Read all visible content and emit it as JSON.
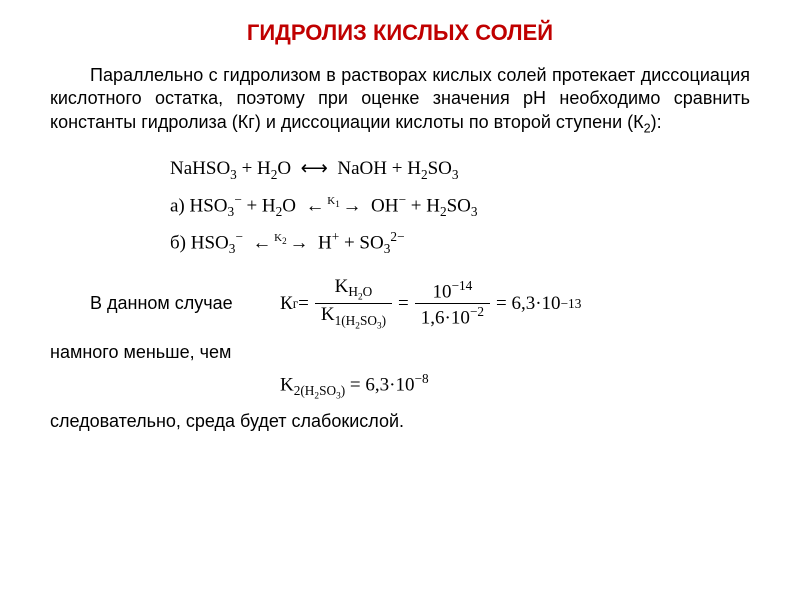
{
  "title": "ГИДРОЛИЗ КИСЛЫХ СОЛЕЙ",
  "title_color": "#c00000",
  "paragraph": "Параллельно с гидролизом в растворах кислых солей протекает диссоциация кислотного остатка, поэтому при оценке значения pH необходимо сравнить константы гидролиза (Кг) и диссоциации кислоты по второй ступени (К₂):",
  "eq": {
    "line1_left": "NaHSO₃ + H₂O",
    "line1_arrow": "⟷",
    "line1_right": "NaOH + H₂SO₃",
    "line2_prefix": "а) ",
    "line2_left": "HSO₃⁻ + H₂O",
    "line2_klabel": "K₁",
    "line2_arrow": "⟷",
    "line2_right": "OH⁻ + H₂SO₃",
    "line3_prefix": "б) ",
    "line3_left": "HSO₃⁻",
    "line3_klabel": "K₂",
    "line3_arrow": "⟷",
    "line3_right": "H⁺ + SO₃²⁻"
  },
  "case_label": "В данном случае",
  "kg_calc": {
    "lhs": "Кг",
    "frac1_num": "K_H₂O",
    "frac1_den": "K₁(H₂SO₃)",
    "frac2_num": "10⁻¹⁴",
    "frac2_den": "1,6·10⁻²",
    "result": "6,3·10⁻¹³"
  },
  "less_text": "намного меньше, чем",
  "k2_value": {
    "lhs": "K₂(H₂SO₃)",
    "val": "6,3·10⁻⁸"
  },
  "conclusion": "следовательно, среда будет слабокислой.",
  "colors": {
    "background": "#ffffff",
    "text": "#000000",
    "title": "#c00000"
  },
  "fonts": {
    "body": "Arial",
    "math": "Times New Roman",
    "title_size_pt": 22,
    "body_size_pt": 18,
    "math_size_pt": 19
  }
}
